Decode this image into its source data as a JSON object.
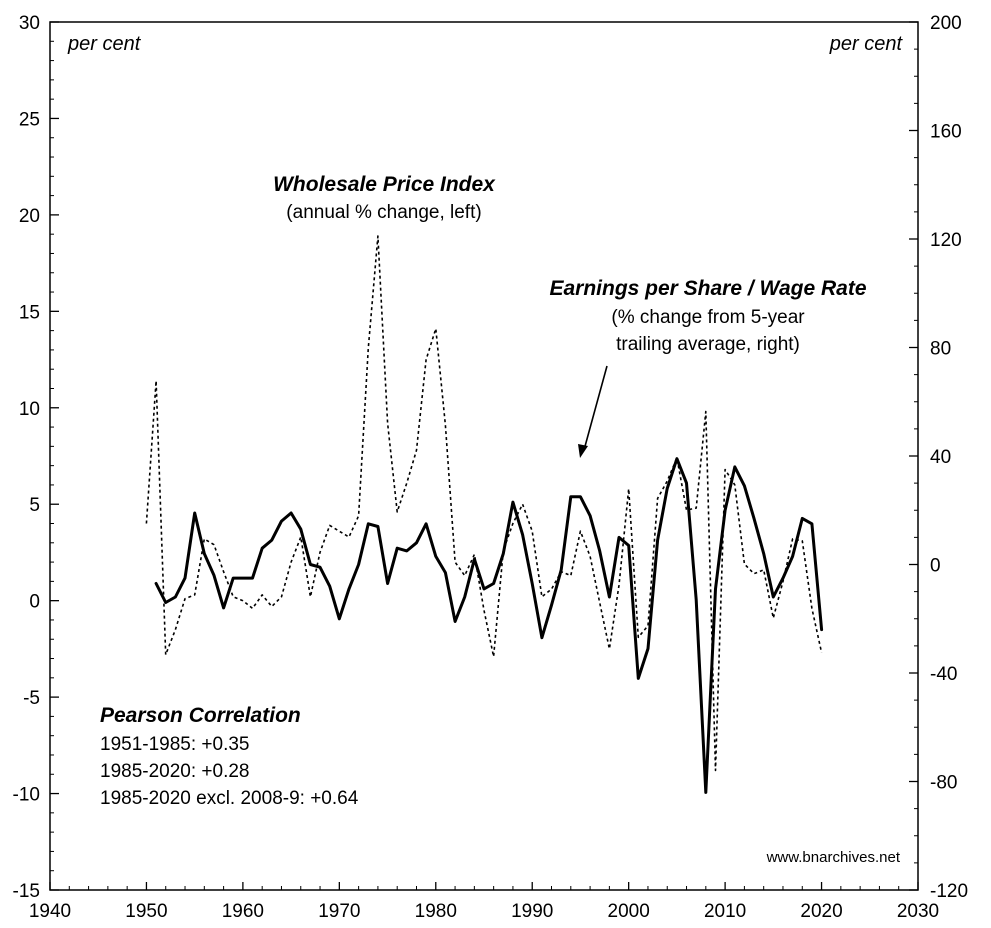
{
  "chart_data": {
    "type": "line",
    "x_axis": {
      "range": [
        1940,
        2030
      ],
      "ticks": [
        1940,
        1950,
        1960,
        1970,
        1980,
        1990,
        2000,
        2010,
        2020,
        2030
      ]
    },
    "y_left": {
      "unit_label": "per cent",
      "range": [
        -15,
        30
      ],
      "ticks": [
        -15,
        -10,
        -5,
        0,
        5,
        10,
        15,
        20,
        25,
        30
      ]
    },
    "y_right": {
      "unit_label": "per cent",
      "range": [
        -120,
        200
      ],
      "ticks": [
        -120,
        -80,
        -40,
        0,
        40,
        80,
        120,
        160,
        200
      ]
    },
    "series": [
      {
        "name": "Wholesale Price Index",
        "description": "(annual % change, left)",
        "axis": "left",
        "style": "dotted",
        "x": [
          1950,
          1951,
          1952,
          1953,
          1954,
          1955,
          1956,
          1957,
          1958,
          1959,
          1960,
          1961,
          1962,
          1963,
          1964,
          1965,
          1966,
          1967,
          1968,
          1969,
          1970,
          1971,
          1972,
          1973,
          1974,
          1975,
          1976,
          1977,
          1978,
          1979,
          1980,
          1981,
          1982,
          1983,
          1984,
          1985,
          1986,
          1987,
          1988,
          1989,
          1990,
          1991,
          1992,
          1993,
          1994,
          1995,
          1996,
          1997,
          1998,
          1999,
          2000,
          2001,
          2002,
          2003,
          2004,
          2005,
          2006,
          2007,
          2008,
          2009,
          2010,
          2011,
          2012,
          2013,
          2014,
          2015,
          2016,
          2017,
          2018,
          2019,
          2020
        ],
        "y": [
          4,
          11.4,
          -2.8,
          -1.5,
          0.1,
          0.3,
          3.2,
          2.9,
          1.5,
          0.2,
          0,
          -0.4,
          0.3,
          -0.3,
          0.2,
          2,
          3.3,
          0.2,
          2.5,
          3.9,
          3.6,
          3.3,
          4.4,
          13.1,
          18.9,
          9.2,
          4.6,
          6.1,
          7.8,
          12.5,
          14.1,
          9.1,
          2,
          1.3,
          2.4,
          -0.5,
          -2.9,
          2.6,
          4,
          5,
          3.6,
          0.2,
          0.6,
          1.5,
          1.3,
          3.6,
          2.3,
          -0.1,
          -2.5,
          0.8,
          5.8,
          -1.9,
          -1.3,
          5.3,
          6.2,
          7.4,
          4.7,
          4.8,
          9.8,
          -8.8,
          6.8,
          6,
          1.9,
          1.4,
          1.6,
          -0.9,
          1,
          3.2,
          3.1,
          -0.4,
          -2.7
        ]
      },
      {
        "name": "Earnings per Share / Wage Rate",
        "description": "(% change from 5-year trailing average, right)",
        "axis": "right",
        "style": "solid",
        "x": [
          1951,
          1952,
          1953,
          1954,
          1955,
          1956,
          1957,
          1958,
          1959,
          1960,
          1961,
          1962,
          1963,
          1964,
          1965,
          1966,
          1967,
          1968,
          1969,
          1970,
          1971,
          1972,
          1973,
          1974,
          1975,
          1976,
          1977,
          1978,
          1979,
          1980,
          1981,
          1982,
          1983,
          1984,
          1985,
          1986,
          1987,
          1988,
          1989,
          1990,
          1991,
          1992,
          1993,
          1994,
          1995,
          1996,
          1997,
          1998,
          1999,
          2000,
          2001,
          2002,
          2003,
          2004,
          2005,
          2006,
          2007,
          2008,
          2009,
          2010,
          2011,
          2012,
          2013,
          2014,
          2015,
          2016,
          2017,
          2018,
          2019,
          2020
        ],
        "y": [
          -7,
          -14,
          -12,
          -5,
          19,
          4,
          -4,
          -16,
          -5,
          -5,
          -5,
          6,
          9,
          16,
          19,
          13,
          0,
          -1,
          -8,
          -20,
          -9,
          0,
          15,
          14,
          -7,
          6,
          5,
          8,
          15,
          3,
          -3,
          -21,
          -12,
          2,
          -9,
          -7,
          4,
          23,
          11,
          -7,
          -27,
          -15,
          -2,
          25,
          25,
          18,
          5,
          -12,
          10,
          7,
          -42,
          -31,
          9,
          28,
          39,
          30,
          -13,
          -84,
          -9,
          20,
          36,
          29,
          17,
          4,
          -12,
          -5,
          3,
          17,
          15,
          -24
        ]
      }
    ],
    "annotations": {
      "wpi_title": "Wholesale Price Index",
      "wpi_subtitle": "(annual % change, left)",
      "eps_title": "Earnings per Share / Wage Rate",
      "eps_subtitle_1": "(% change from 5-year",
      "eps_subtitle_2": "trailing average, right)"
    },
    "correlation": {
      "title": "Pearson Correlation",
      "lines": [
        "1951-1985: +0.35",
        "1985-2020: +0.28",
        "1985-2020 excl. 2008-9: +0.64"
      ]
    },
    "source": "www.bnarchives.net",
    "grid": false,
    "legend": "none"
  }
}
